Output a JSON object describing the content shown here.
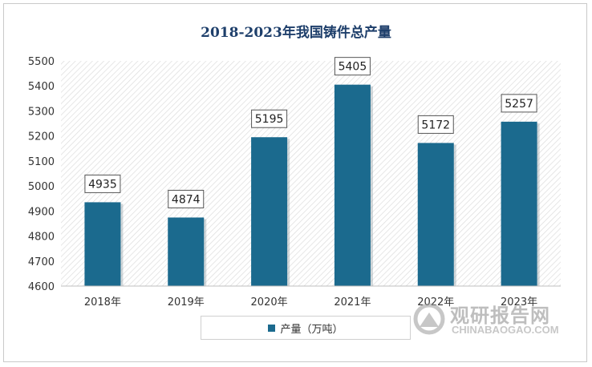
{
  "chart_data": {
    "type": "bar",
    "title": "2018-2023年我国铸件总产量",
    "categories": [
      "2018年",
      "2019年",
      "2020年",
      "2021年",
      "2022年",
      "2023年"
    ],
    "series": [
      {
        "name": "产量（万吨）",
        "values": [
          4935,
          4874,
          5195,
          5405,
          5172,
          5257
        ]
      }
    ],
    "ylim": [
      4600,
      5500
    ],
    "yticks": [
      4600,
      4700,
      4800,
      4900,
      5000,
      5100,
      5200,
      5300,
      5400,
      5500
    ],
    "grid": false,
    "legend_position": "bottom",
    "bar_color": "#1b6a8e",
    "data_labels": true
  },
  "watermark": {
    "name_cn": "观研报告网",
    "name_en": "CHINABAOGAO.COM"
  }
}
